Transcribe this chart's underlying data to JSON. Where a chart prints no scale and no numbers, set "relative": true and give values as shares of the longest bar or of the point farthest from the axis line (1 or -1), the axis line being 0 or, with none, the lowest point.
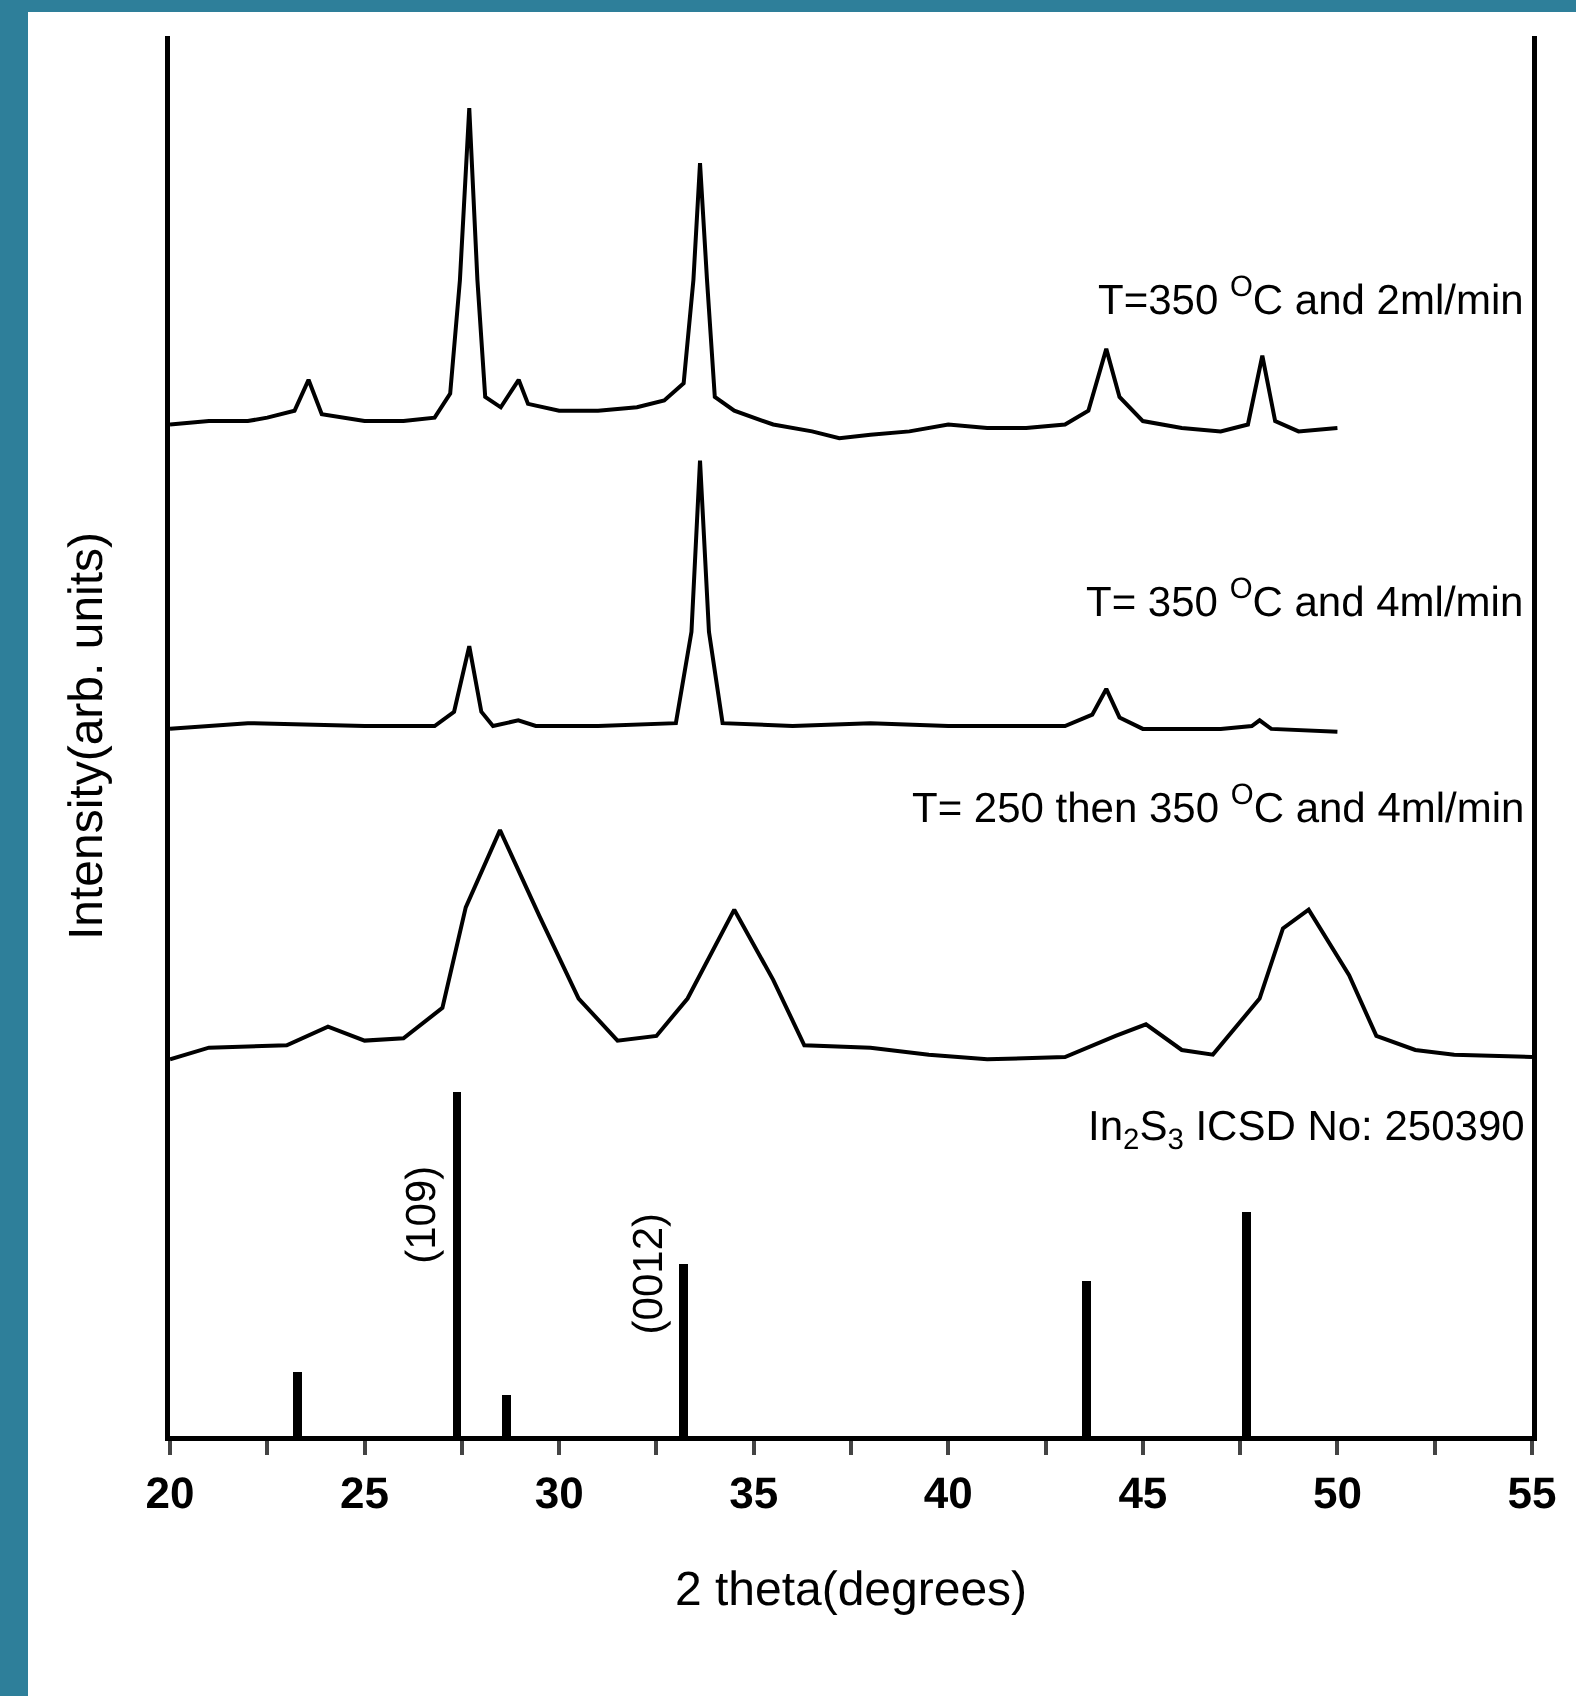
{
  "chart_data": [
    {
      "type": "line",
      "relative": true,
      "xlim": [
        20,
        55
      ],
      "tick_labels": false,
      "series": [
        {
          "name": "T=350 $^{O}$C and 2ml/min",
          "color": "#000000",
          "x": [
            20,
            21,
            22,
            22.5,
            23.2,
            23.56,
            23.9,
            25,
            26,
            26.8,
            27.2,
            27.45,
            27.69,
            27.9,
            28.1,
            28.5,
            28.96,
            29.2,
            30,
            31,
            32,
            32.7,
            33.2,
            33.45,
            33.62,
            33.8,
            34,
            34.5,
            35.5,
            36.5,
            37.2,
            38,
            39,
            40,
            41,
            42,
            43,
            43.6,
            44.06,
            44.4,
            45,
            46,
            47,
            47.7,
            48.07,
            48.4,
            49,
            50
          ],
          "values": [
            0.08,
            0.09,
            0.09,
            0.1,
            0.12,
            0.21,
            0.11,
            0.09,
            0.09,
            0.1,
            0.17,
            0.5,
            1,
            0.5,
            0.16,
            0.13,
            0.21,
            0.14,
            0.12,
            0.12,
            0.13,
            0.15,
            0.2,
            0.5,
            0.84,
            0.5,
            0.16,
            0.12,
            0.08,
            0.06,
            0.04,
            0.05,
            0.06,
            0.08,
            0.07,
            0.07,
            0.08,
            0.12,
            0.3,
            0.16,
            0.09,
            0.07,
            0.06,
            0.08,
            0.28,
            0.09,
            0.06,
            0.07
          ]
        }
      ]
    },
    {
      "type": "line",
      "relative": true,
      "xlim": [
        20,
        55
      ],
      "tick_labels": false,
      "series": [
        {
          "name": "T= 350 $^{O}$C and 4ml/min",
          "color": "#000000",
          "x": [
            20,
            22,
            25,
            26.8,
            27.3,
            27.69,
            28,
            28.3,
            28.95,
            29.4,
            31,
            33,
            33.4,
            33.62,
            33.85,
            34.2,
            36,
            38,
            40,
            43,
            43.7,
            44.06,
            44.4,
            45,
            47,
            47.8,
            48,
            48.3,
            50
          ],
          "values": [
            0.06,
            0.08,
            0.07,
            0.07,
            0.12,
            0.35,
            0.12,
            0.07,
            0.09,
            0.07,
            0.07,
            0.08,
            0.4,
            1,
            0.4,
            0.08,
            0.07,
            0.08,
            0.07,
            0.07,
            0.11,
            0.2,
            0.1,
            0.06,
            0.06,
            0.07,
            0.09,
            0.06,
            0.05
          ]
        }
      ]
    },
    {
      "type": "line",
      "relative": true,
      "xlim": [
        20,
        55
      ],
      "tick_labels": false,
      "series": [
        {
          "name": "T= 250 then 350 $^{O}$C and 4ml/min",
          "color": "#000000",
          "x": [
            20,
            21,
            23,
            24.06,
            25,
            26,
            27,
            27.6,
            28.48,
            29.5,
            30.5,
            31.5,
            32.5,
            33.3,
            34.5,
            35.5,
            36.3,
            38,
            39.5,
            41,
            43,
            44.3,
            45.08,
            46,
            46.8,
            48,
            48.6,
            49.26,
            50.3,
            51,
            52,
            53,
            55
          ],
          "values": [
            0.02,
            0.07,
            0.08,
            0.16,
            0.1,
            0.11,
            0.24,
            0.67,
            1,
            0.63,
            0.28,
            0.1,
            0.12,
            0.28,
            0.66,
            0.36,
            0.08,
            0.07,
            0.04,
            0.02,
            0.03,
            0.12,
            0.17,
            0.06,
            0.04,
            0.28,
            0.58,
            0.66,
            0.38,
            0.12,
            0.06,
            0.04,
            0.03
          ]
        }
      ]
    },
    {
      "type": "bar",
      "relative": true,
      "xlim": [
        20,
        55
      ],
      "tick_labels": "x",
      "xlabel": "2 theta(degrees)",
      "ylabel": "Intensity(arb. units)",
      "xticks": [
        20,
        {
          "value": 22.5,
          "label": null
        },
        25,
        {
          "value": 27.5,
          "label": null
        },
        30,
        {
          "value": 32.5,
          "label": null
        },
        35,
        {
          "value": 37.5,
          "label": null
        },
        40,
        {
          "value": 42.5,
          "label": null
        },
        45,
        {
          "value": 47.5,
          "label": null
        },
        50,
        {
          "value": 52.5,
          "label": null
        },
        55
      ],
      "annotations": [
        {
          "text": "(109)",
          "x": 27.38,
          "y": 0.64
        },
        {
          "text": "(0012)",
          "x": 33.19,
          "y": 0.47
        }
      ],
      "series": [
        {
          "name": "In$_{2}$S$_{3}$ ICSD No: 250390",
          "color": "#000000",
          "x": [
            23.27,
            27.38,
            28.65,
            33.19,
            43.55,
            47.66
          ],
          "values": [
            0.185,
            1,
            0.12,
            0.5,
            0.45,
            0.65
          ]
        }
      ]
    }
  ]
}
